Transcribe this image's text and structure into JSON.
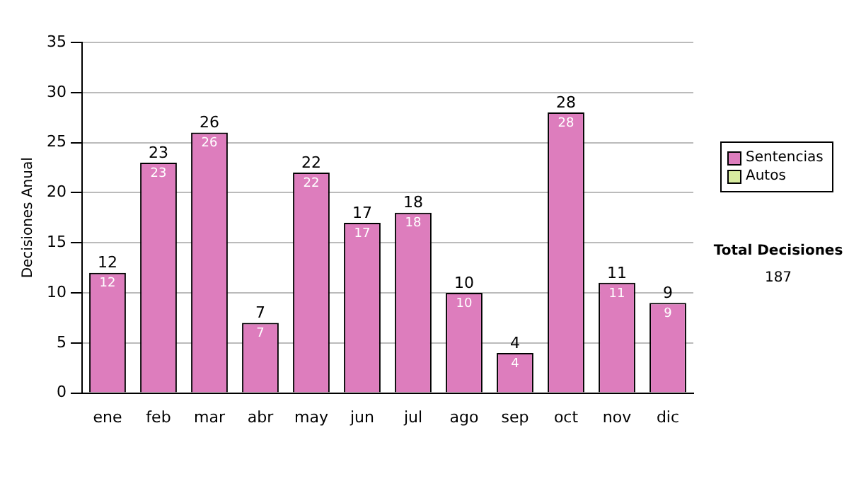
{
  "chart_data": {
    "type": "bar",
    "ylabel": "Decisiones Anual",
    "categories": [
      "ene",
      "feb",
      "mar",
      "abr",
      "may",
      "jun",
      "jul",
      "ago",
      "sep",
      "oct",
      "nov",
      "dic"
    ],
    "series": [
      {
        "name": "Sentencias",
        "color": "#dd7dbd",
        "values": [
          12,
          23,
          26,
          7,
          22,
          17,
          18,
          10,
          4,
          28,
          11,
          9
        ],
        "value_labels": [
          "12",
          "23",
          "26",
          "7",
          "22",
          "17",
          "18",
          "10",
          "4",
          "28",
          "11",
          "9"
        ]
      },
      {
        "name": "Autos",
        "color": "#d8eca0",
        "values": [
          0,
          0,
          0,
          0,
          0,
          0,
          0,
          0,
          0,
          0,
          0,
          0
        ]
      }
    ],
    "stacked": true,
    "totals": [
      "12",
      "23",
      "26",
      "7",
      "22",
      "17",
      "18",
      "10",
      "4",
      "28",
      "11",
      "9"
    ],
    "ylim": [
      0,
      35
    ],
    "yticks": [
      0,
      5,
      10,
      15,
      20,
      25,
      30,
      35
    ],
    "grid": "y",
    "legend": "right",
    "annotations": [
      "Total Decisiones",
      "187"
    ]
  }
}
